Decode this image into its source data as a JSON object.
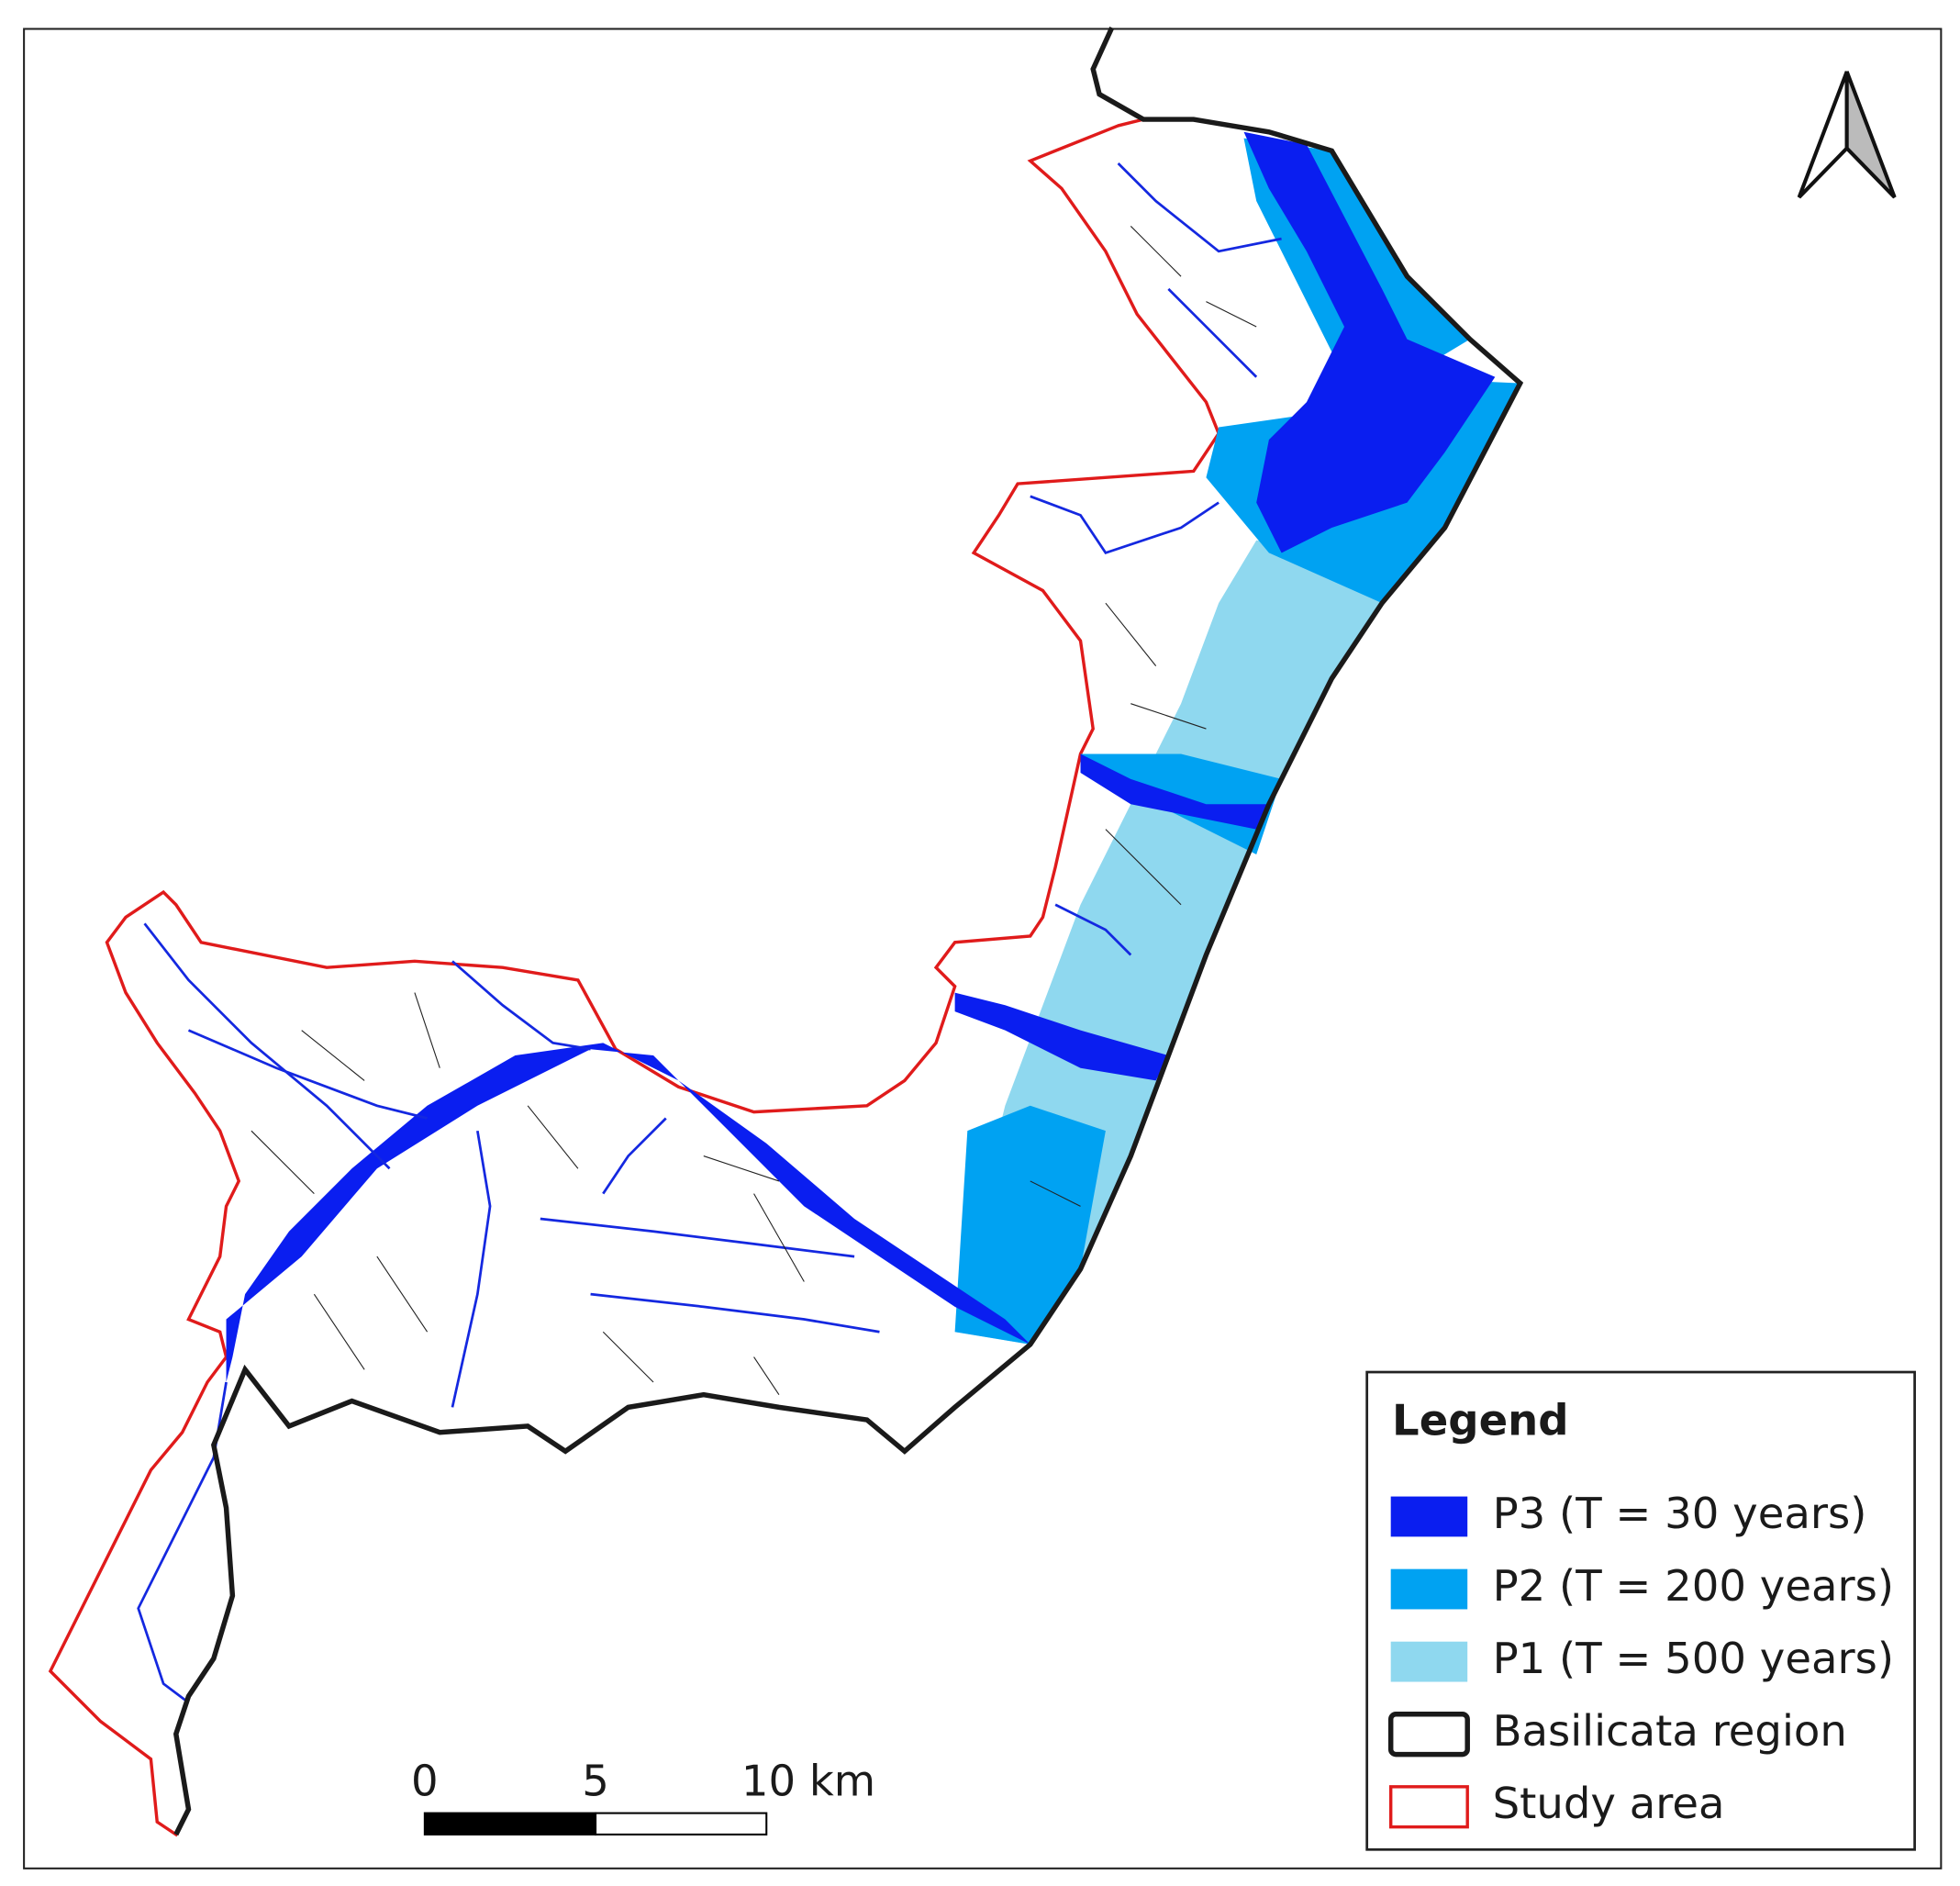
{
  "legend": {
    "title": "Legend",
    "items": [
      {
        "label": "P3 (T = 30 years)",
        "color": "#0a1ef0",
        "style": "fill"
      },
      {
        "label": "P2 (T = 200 years)",
        "color": "#00a2f2",
        "style": "fill"
      },
      {
        "label": "P1 (T = 500 years)",
        "color": "#8fd8ef",
        "style": "fill"
      },
      {
        "label": "Basilicata region",
        "color": "#1a1a1a",
        "style": "outline"
      },
      {
        "label": "Study area",
        "color": "#e01b1b",
        "style": "outline"
      }
    ]
  },
  "scale_bar": {
    "labels": [
      "0",
      "5",
      "10 km"
    ]
  }
}
